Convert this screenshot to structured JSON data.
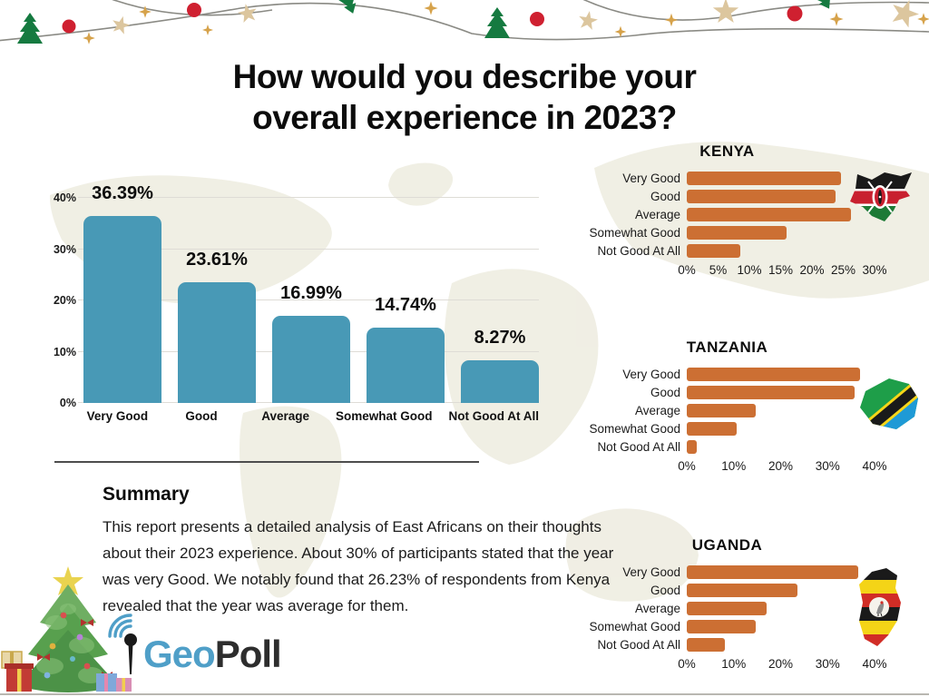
{
  "title": {
    "line1": "How would you describe your",
    "line2": "overall experience in 2023?"
  },
  "colors": {
    "teal_bar": "#4899B6",
    "orange_bar": "#CC6F33",
    "logo_blue": "#4F9FC8",
    "logo_dark": "#2D2D2D"
  },
  "chart_data": [
    {
      "type": "bar",
      "id": "overall",
      "orientation": "vertical",
      "title": "How would you describe your overall experience in 2023?",
      "categories": [
        "Very Good",
        "Good",
        "Average",
        "Somewhat Good",
        "Not Good At All"
      ],
      "values": [
        36.39,
        23.61,
        16.99,
        14.74,
        8.27
      ],
      "value_labels": [
        "36.39%",
        "23.61%",
        "16.99%",
        "14.74%",
        "8.27%"
      ],
      "y_ticks": [
        "0%",
        "10%",
        "20%",
        "30%",
        "40%"
      ],
      "ylim": [
        0,
        40
      ],
      "grid": true,
      "bar_color": "#4899B6"
    },
    {
      "type": "bar",
      "id": "kenya",
      "orientation": "horizontal",
      "title": "KENYA",
      "categories": [
        "Very Good",
        "Good",
        "Average",
        "Somewhat Good",
        "Not Good At All"
      ],
      "values": [
        24.7,
        23.8,
        26.23,
        16.0,
        8.5
      ],
      "x_ticks": [
        "0%",
        "5%",
        "10%",
        "15%",
        "20%",
        "25%",
        "30%"
      ],
      "xlim": [
        0,
        30
      ],
      "grid": false,
      "bar_color": "#CC6F33"
    },
    {
      "type": "bar",
      "id": "tanzania",
      "orientation": "horizontal",
      "title": "TANZANIA",
      "categories": [
        "Very Good",
        "Good",
        "Average",
        "Somewhat Good",
        "Not Good At All"
      ],
      "values": [
        37.0,
        35.8,
        14.7,
        10.6,
        2.2
      ],
      "x_ticks": [
        "0%",
        "10%",
        "20%",
        "30%",
        "40%"
      ],
      "xlim": [
        0,
        40
      ],
      "grid": false,
      "bar_color": "#CC6F33"
    },
    {
      "type": "bar",
      "id": "uganda",
      "orientation": "horizontal",
      "title": "UGANDA",
      "categories": [
        "Very Good",
        "Good",
        "Average",
        "Somewhat Good",
        "Not Good At All"
      ],
      "values": [
        36.5,
        23.6,
        17.0,
        14.6,
        8.2
      ],
      "x_ticks": [
        "0%",
        "10%",
        "20%",
        "30%",
        "40%"
      ],
      "xlim": [
        0,
        40
      ],
      "grid": false,
      "bar_color": "#CC6F33"
    }
  ],
  "summary": {
    "heading": "Summary",
    "text": "This report presents a detailed analysis of East Africans on their thoughts about their 2023 experience. About 30% of participants stated that the year was very Good. We notably found that 26.23% of respondents from Kenya revealed that the year was average for them."
  },
  "logo": {
    "geo": "Geo",
    "poll": "Poll"
  }
}
